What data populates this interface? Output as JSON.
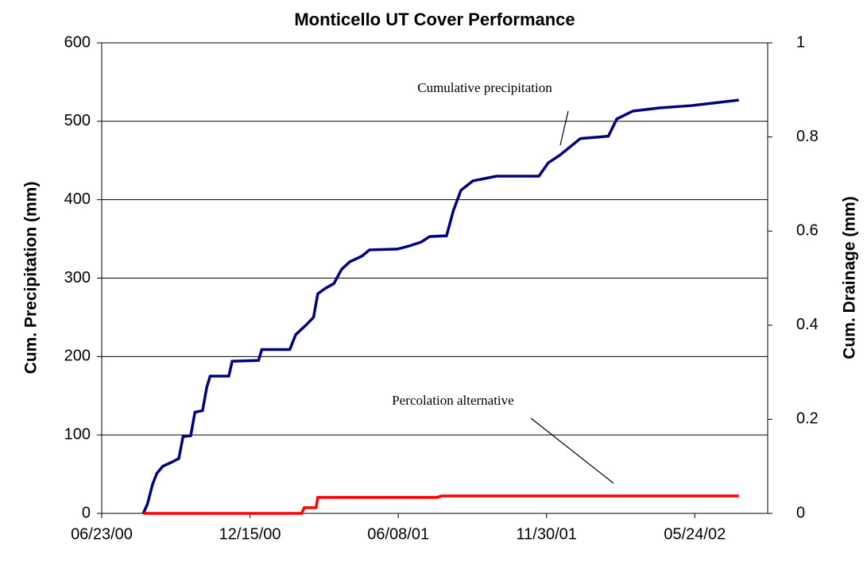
{
  "chart_data": {
    "type": "line",
    "title": "Monticello UT Cover Performance",
    "ylabel": "Cum. Precipitation (mm)",
    "y2label": "Cum. Drainage (mm)",
    "annotations": [
      "Cumulative precipitation",
      "Percolation alternative"
    ],
    "xlim": [
      "2000-06-23",
      "2002-08-18"
    ],
    "xticks": [
      {
        "value": "2000-06-23",
        "label": "06/23/00"
      },
      {
        "value": "2000-12-15",
        "label": "12/15/00"
      },
      {
        "value": "2001-06-08",
        "label": "06/08/01"
      },
      {
        "value": "2001-11-30",
        "label": "11/30/01"
      },
      {
        "value": "2002-05-24",
        "label": "05/24/02"
      }
    ],
    "ylim": [
      0,
      600
    ],
    "yticks": [
      0,
      100,
      200,
      300,
      400,
      500,
      600
    ],
    "y2lim": [
      0,
      1
    ],
    "y2ticks": [
      0,
      0.2,
      0.4,
      0.6,
      0.8,
      1
    ],
    "grid": true,
    "series": [
      {
        "name": "Cumulative precipitation",
        "color": "#000080",
        "x": [
          "2000-08-11",
          "2000-08-16",
          "2000-08-22",
          "2000-08-27",
          "2000-09-03",
          "2000-09-13",
          "2000-09-22",
          "2000-09-27",
          "2000-10-06",
          "2000-10-11",
          "2000-10-20",
          "2000-10-25",
          "2000-10-29",
          "2000-11-20",
          "2000-11-24",
          "2000-12-25",
          "2000-12-29",
          "2001-01-31",
          "2001-02-07",
          "2001-02-19",
          "2001-02-28",
          "2001-03-05",
          "2001-03-14",
          "2001-03-24",
          "2001-04-02",
          "2001-04-12",
          "2001-04-26",
          "2001-05-05",
          "2001-06-07",
          "2001-06-21",
          "2001-07-05",
          "2001-07-15",
          "2001-08-04",
          "2001-08-12",
          "2001-08-21",
          "2001-09-04",
          "2001-09-18",
          "2001-10-02",
          "2001-11-21",
          "2001-12-02",
          "2001-12-16",
          "2002-01-09",
          "2002-02-11",
          "2002-02-21",
          "2002-03-12",
          "2002-04-12",
          "2002-05-20",
          "2002-07-15"
        ],
        "values": [
          0,
          12,
          37,
          51,
          60,
          65,
          70,
          98,
          99,
          129,
          131,
          161,
          175,
          175,
          194,
          195,
          209,
          209,
          228,
          240,
          250,
          280,
          287,
          293,
          311,
          321,
          328,
          336,
          337,
          341,
          346,
          353,
          354,
          386,
          412,
          424,
          427,
          430,
          430,
          447,
          457,
          478,
          481,
          503,
          513,
          517,
          520,
          527
        ]
      },
      {
        "name": "Percolation alternative",
        "color": "#ff0000",
        "axis": "y2",
        "x": [
          "2000-08-11",
          "2001-02-14",
          "2001-02-17",
          "2001-03-03",
          "2001-03-05",
          "2001-07-24",
          "2001-07-29",
          "2002-07-15"
        ],
        "values": [
          0,
          0,
          0.012,
          0.012,
          0.034,
          0.034,
          0.037,
          0.037
        ]
      }
    ]
  }
}
